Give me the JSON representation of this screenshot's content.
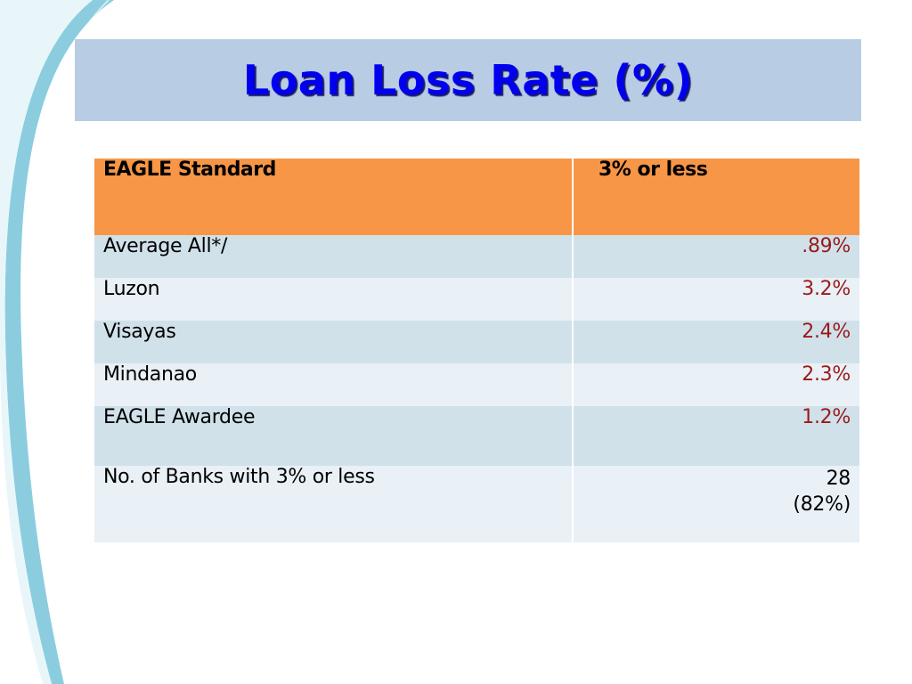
{
  "title": "Loan Loss Rate (%)",
  "table": {
    "header": {
      "label": "EAGLE Standard",
      "value": "3% or less"
    },
    "rows": [
      {
        "label": "Average All*/",
        "value": ".89%"
      },
      {
        "label": "Luzon",
        "value": "3.2%"
      },
      {
        "label": "Visayas",
        "value": "2.4%"
      },
      {
        "label": "Mindanao",
        "value": "2.3%"
      },
      {
        "label": "EAGLE Awardee",
        "value": "1.2%"
      }
    ],
    "summary": {
      "label": "No. of Banks with 3% or less",
      "value_line1": "28",
      "value_line2": "(82%)"
    }
  },
  "colors": {
    "title_band": "#b8cce4",
    "title_text": "#0000ee",
    "header_fill": "#f79646",
    "row_dark": "#d0e1ea",
    "row_light": "#e9f0f6",
    "value_text": "#9a1a1a",
    "swoosh": "#7ec8dc"
  }
}
